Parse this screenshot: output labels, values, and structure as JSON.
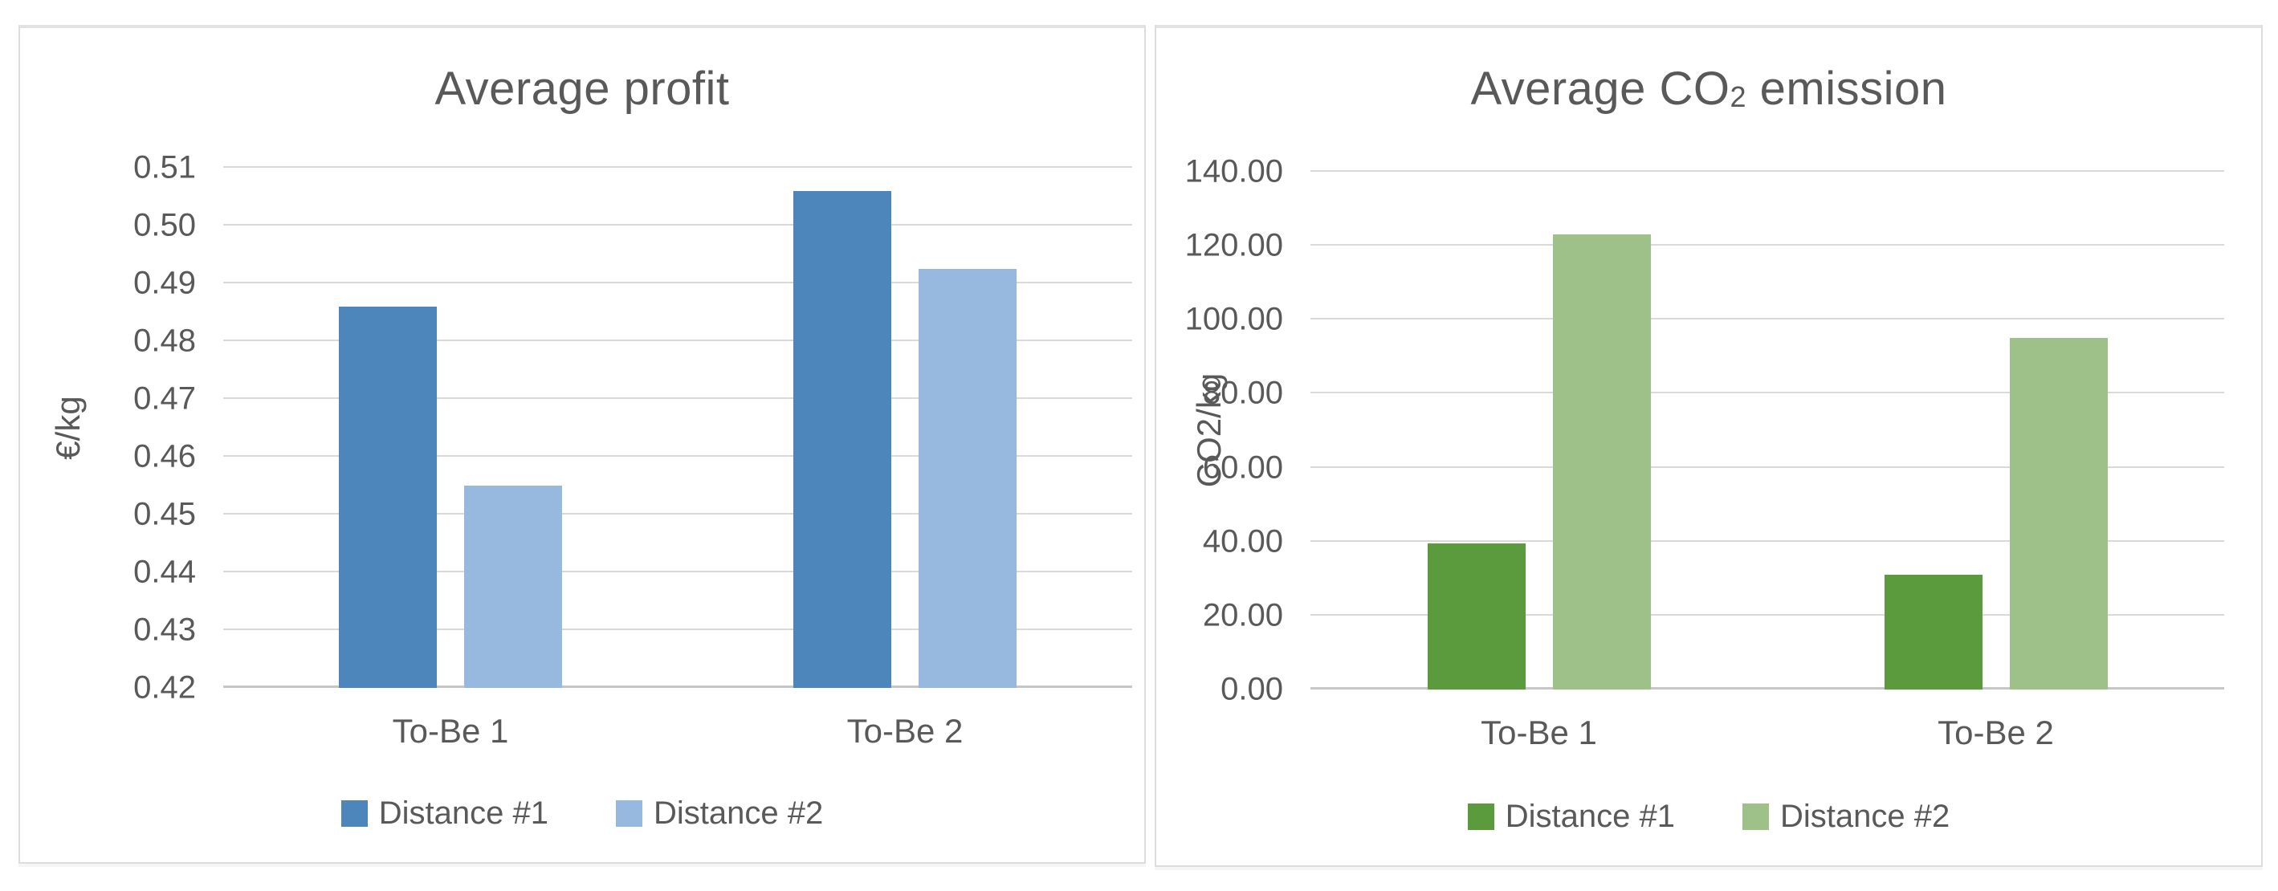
{
  "chart_data": [
    {
      "type": "bar",
      "title": "Average profit",
      "title_parts": [
        {
          "text": "Average profit",
          "sub": false
        }
      ],
      "ylabel": "€/kg",
      "categories": [
        "To-Be 1",
        "To-Be 2"
      ],
      "series": [
        {
          "name": "Distance #1",
          "color": "#4D86BA",
          "values": [
            0.486,
            0.506
          ]
        },
        {
          "name": "Distance #2",
          "color": "#97B9E0",
          "values": [
            0.455,
            0.4925
          ]
        }
      ],
      "ylim": [
        0.42,
        0.51
      ],
      "ytick_step": 0.01,
      "yticks": [
        "0.42",
        "0.43",
        "0.44",
        "0.45",
        "0.46",
        "0.47",
        "0.48",
        "0.49",
        "0.50",
        "0.51"
      ],
      "grid": true,
      "legend_position": "bottom",
      "text_color": "#595959",
      "grid_color": "#D9D9D9"
    },
    {
      "type": "bar",
      "title": "Average CO2 emission",
      "title_parts": [
        {
          "text": "Average CO",
          "sub": false
        },
        {
          "text": "2",
          "sub": true
        },
        {
          "text": " emission",
          "sub": false
        }
      ],
      "ylabel": "CO2/kg",
      "categories": [
        "To-Be 1",
        "To-Be 2"
      ],
      "series": [
        {
          "name": "Distance #1",
          "color": "#5B9A3D",
          "values": [
            39.5,
            31.0
          ]
        },
        {
          "name": "Distance #2",
          "color": "#9DC189",
          "values": [
            123.0,
            95.0
          ]
        }
      ],
      "ylim": [
        0,
        140
      ],
      "ytick_step": 20,
      "yticks": [
        "0.00",
        "20.00",
        "40.00",
        "60.00",
        "80.00",
        "100.00",
        "120.00",
        "140.00"
      ],
      "grid": true,
      "legend_position": "bottom",
      "text_color": "#595959",
      "grid_color": "#D9D9D9"
    }
  ]
}
